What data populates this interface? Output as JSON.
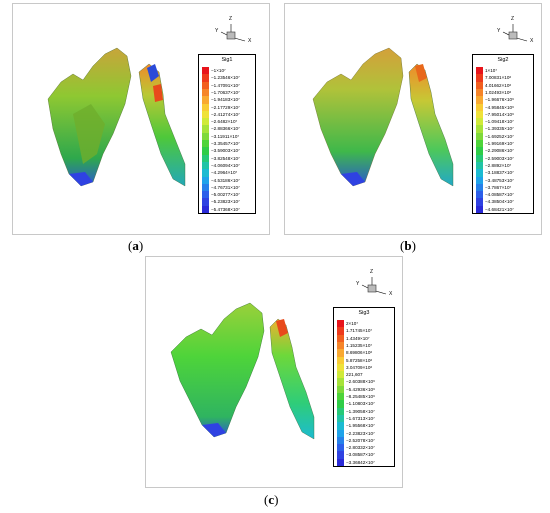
{
  "chart_data": [
    {
      "type": "heatmap",
      "caption_letter": "a",
      "title": "Sig1",
      "legend": [
        "−1×10⁷",
        "−1.23546×10⁷",
        "−1.47091×10⁷",
        "−1.70637×10⁷",
        "−1.94183×10⁷",
        "−2.17729×10⁷",
        "−2.41274×10⁷",
        "−2.6482×10⁷",
        "−2.88366×10⁷",
        "−3.11911×10⁷",
        "−3.35457×10⁷",
        "−3.59003×10⁷",
        "−3.82548×10⁷",
        "−4.06094×10⁷",
        "−4.2964×10⁷",
        "−4.53186×10⁷",
        "−4.76731×10⁷",
        "−5.00277×10⁷",
        "−5.23823×10⁷",
        "−5.47368×10⁷"
      ],
      "axes": {
        "x": "X",
        "y": "Y",
        "z": "Z"
      },
      "dominant_color": "#7fd22a"
    },
    {
      "type": "heatmap",
      "caption_letter": "b",
      "title": "Sig2",
      "legend": [
        "1×10⁷",
        "7.00831×10⁶",
        "4.01662×10⁶",
        "1.02493×10⁶",
        "−1.96676×10⁶",
        "−4.95845×10⁶",
        "−7.95014×10⁶",
        "−1.09418×10⁷",
        "−1.39335×10⁷",
        "−1.69252×10⁷",
        "−1.99169×10⁷",
        "−2.29086×10⁷",
        "−2.59003×10⁷",
        "−2.8892×10⁷",
        "−3.18837×10⁷",
        "−3.48753×10⁷",
        "−3.7867×10⁷",
        "−4.08587×10⁷",
        "−4.38504×10⁷",
        "−4.68421×10⁷"
      ],
      "axes": {
        "x": "X",
        "y": "Y",
        "z": "Z"
      },
      "dominant_color": "#a9cf3a"
    },
    {
      "type": "heatmap",
      "caption_letter": "c",
      "title": "Sig3",
      "legend": [
        "2×10⁷",
        "1.71745×10⁷",
        "1.4349×10⁷",
        "1.15235×10⁷",
        "8.69806×10⁶",
        "5.87258×10⁶",
        "3.04709×10⁶",
        "221,607",
        "−2.60388×10⁶",
        "−5.42936×10⁶",
        "−8.25485×10⁶",
        "−1.10803×10⁷",
        "−1.39058×10⁷",
        "−1.67313×10⁷",
        "−1.95568×10⁷",
        "−2.23823×10⁷",
        "−2.52078×10⁷",
        "−2.80332×10⁷",
        "−3.08587×10⁷",
        "−3.36842×10⁷"
      ],
      "axes": {
        "x": "X",
        "y": "Y",
        "z": "Z"
      },
      "dominant_color": "#4cd21e"
    }
  ],
  "palette": [
    "#e8141b",
    "#ee3a1c",
    "#f25f1f",
    "#f6852a",
    "#f9a932",
    "#f9cc36",
    "#efe23a",
    "#d0ea39",
    "#a7e33a",
    "#7fd93b",
    "#4ed43a",
    "#2fcd48",
    "#27c978",
    "#22c4a6",
    "#1cbbd2",
    "#1fa3ea",
    "#2681ea",
    "#2c5fea",
    "#2f42e2",
    "#2a2ad8"
  ]
}
